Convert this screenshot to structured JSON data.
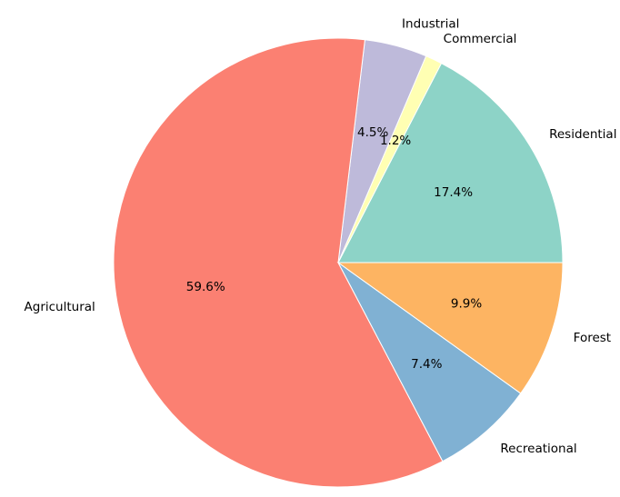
{
  "chart_data": {
    "type": "pie",
    "title": "",
    "categories": [
      "Residential",
      "Commercial",
      "Industrial",
      "Agricultural",
      "Recreational",
      "Forest"
    ],
    "values": [
      17.4,
      1.2,
      4.5,
      59.6,
      7.4,
      9.9
    ],
    "pct_labels": [
      "17.4%",
      "1.2%",
      "4.5%",
      "59.6%",
      "7.4%",
      "9.9%"
    ],
    "colors": [
      "#8dd3c7",
      "#ffffb3",
      "#bebada",
      "#fb8072",
      "#80b1d3",
      "#fdb462"
    ],
    "start_angle_deg": 0,
    "direction": "counterclockwise",
    "legend": "none",
    "wedge_edge_color": "#ffffff"
  }
}
